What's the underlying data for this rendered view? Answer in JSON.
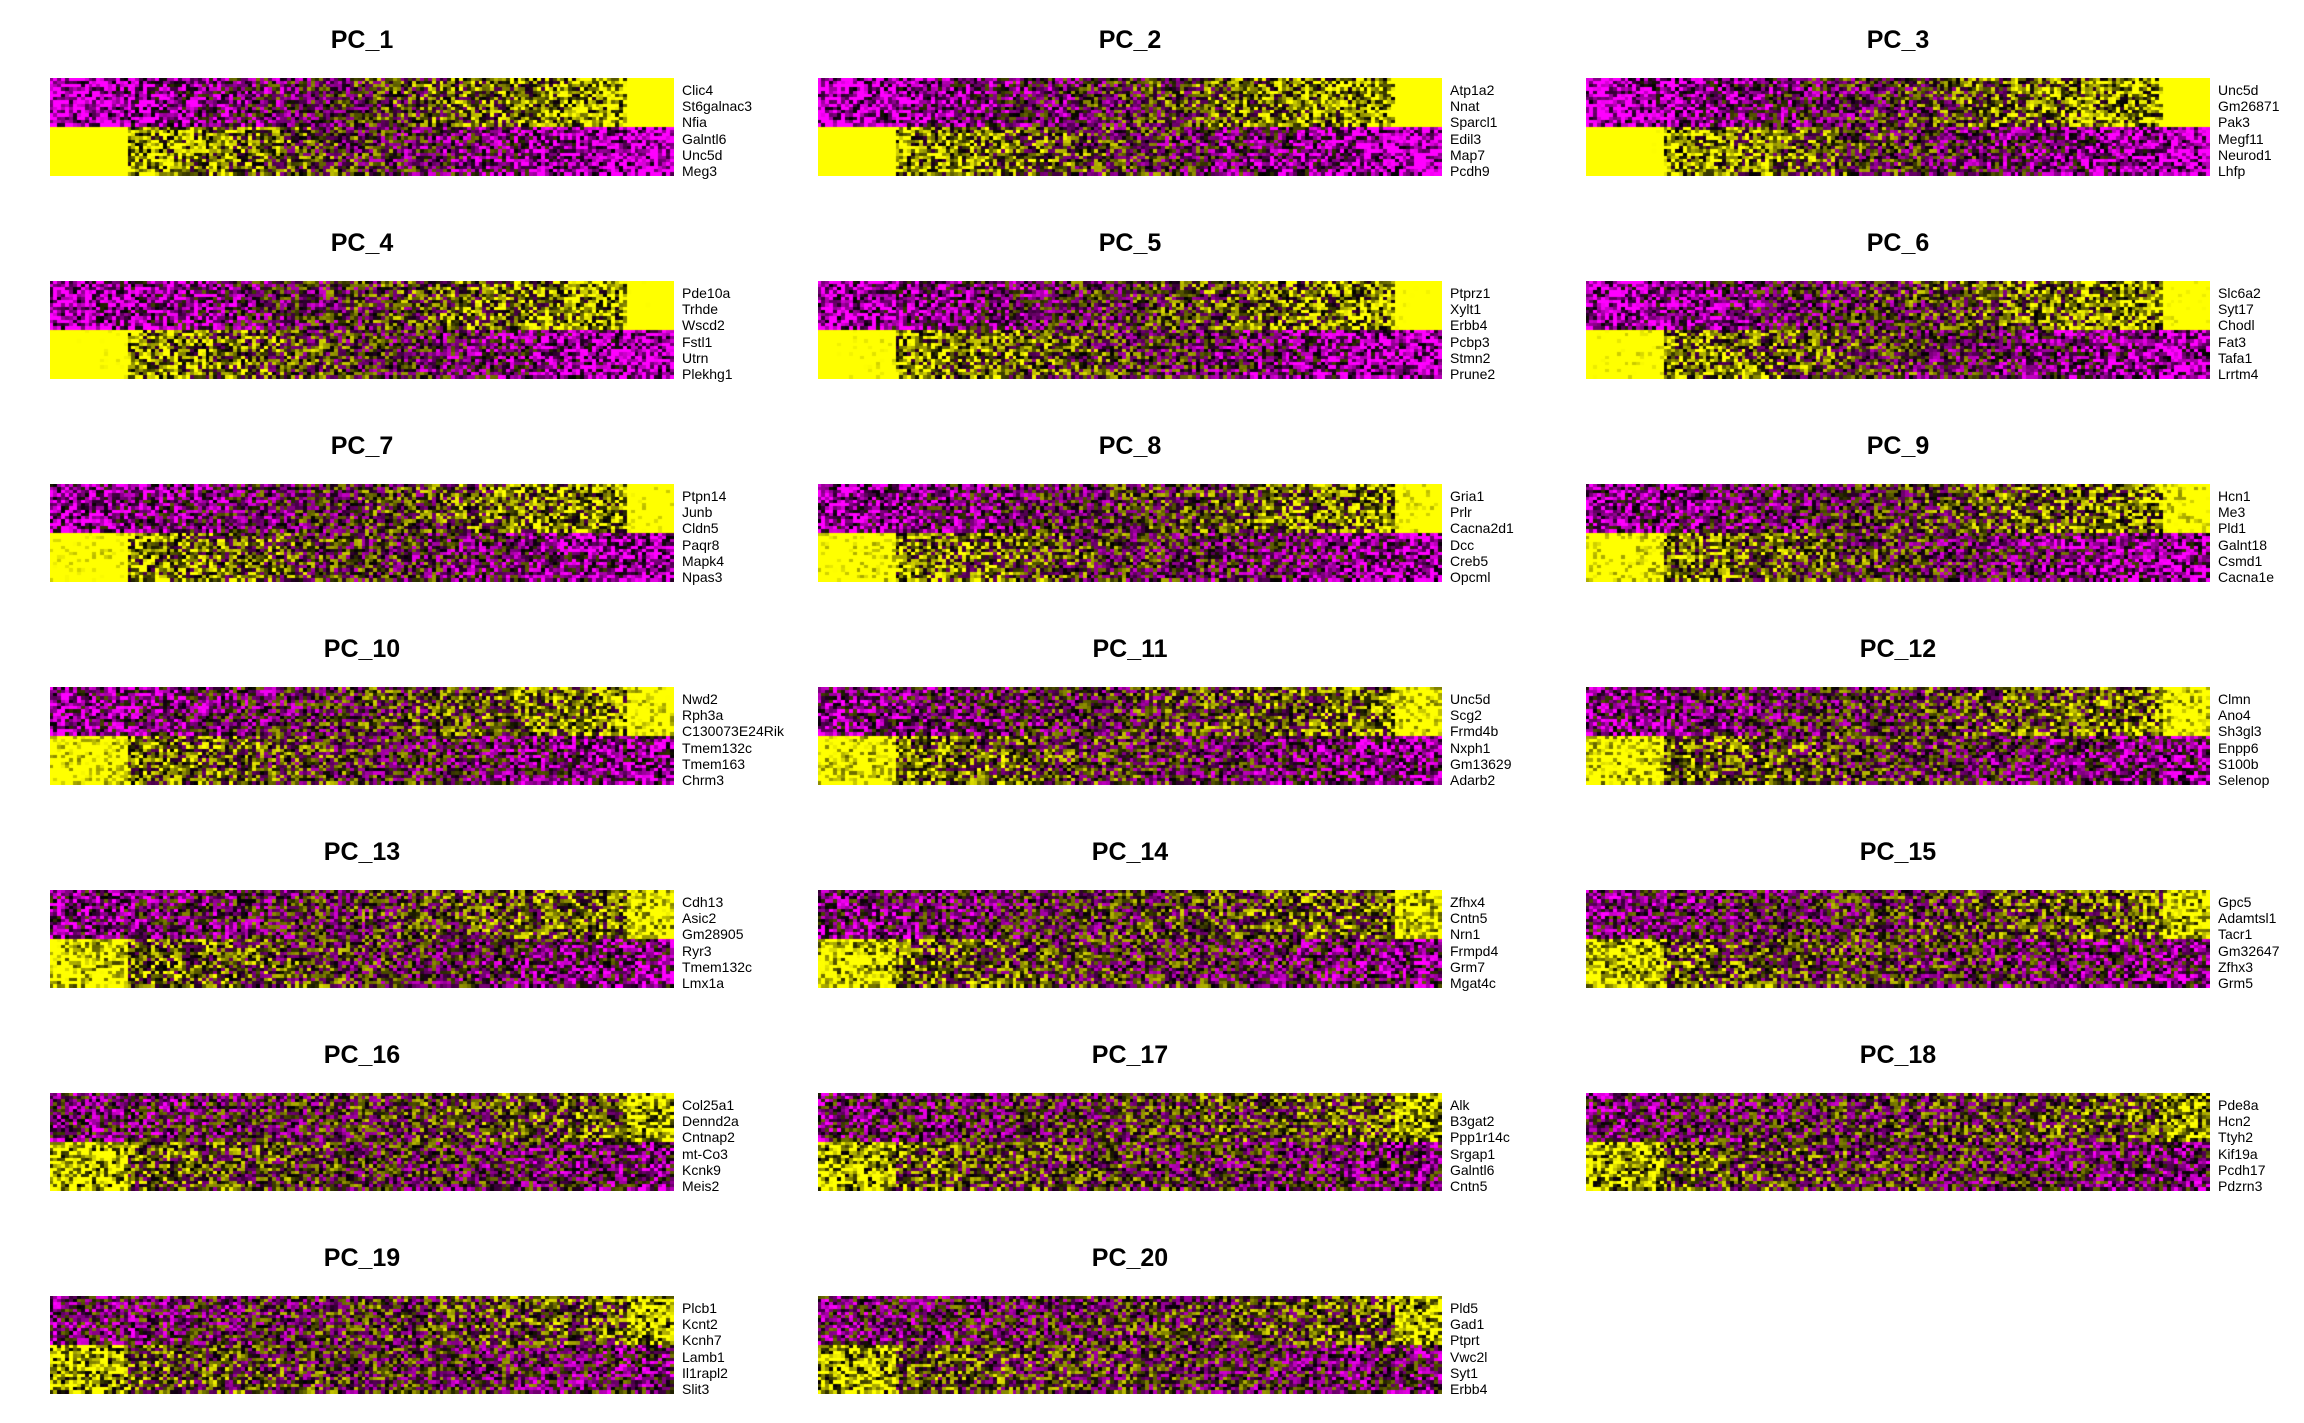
{
  "chart_data": {
    "type": "heatmap",
    "description_scale": "expression z-score colour scale: magenta (low) → black (mid) → yellow (high)",
    "colors": {
      "low": "#ff00ff",
      "mid": "#000000",
      "high": "#ffff00"
    },
    "panels": [
      {
        "title": "PC_1",
        "genes": [
          "Clic4",
          "St6galnac3",
          "Nfia",
          "Galntl6",
          "Unc5d",
          "Meg3"
        ]
      },
      {
        "title": "PC_2",
        "genes": [
          "Atp1a2",
          "Nnat",
          "Sparcl1",
          "Edil3",
          "Map7",
          "Pcdh9"
        ]
      },
      {
        "title": "PC_3",
        "genes": [
          "Unc5d",
          "Gm26871",
          "Pak3",
          "Megf11",
          "Neurod1",
          "Lhfp"
        ]
      },
      {
        "title": "PC_4",
        "genes": [
          "Pde10a",
          "Trhde",
          "Wscd2",
          "Fstl1",
          "Utrn",
          "Plekhg1"
        ]
      },
      {
        "title": "PC_5",
        "genes": [
          "Ptprz1",
          "Xylt1",
          "Erbb4",
          "Pcbp3",
          "Stmn2",
          "Prune2"
        ]
      },
      {
        "title": "PC_6",
        "genes": [
          "Slc6a2",
          "Syt17",
          "Chodl",
          "Fat3",
          "Tafa1",
          "Lrrtm4"
        ]
      },
      {
        "title": "PC_7",
        "genes": [
          "Ptpn14",
          "Junb",
          "Cldn5",
          "Paqr8",
          "Mapk4",
          "Npas3"
        ]
      },
      {
        "title": "PC_8",
        "genes": [
          "Gria1",
          "Prlr",
          "Cacna2d1",
          "Dcc",
          "Creb5",
          "Opcml"
        ]
      },
      {
        "title": "PC_9",
        "genes": [
          "Hcn1",
          "Me3",
          "Pld1",
          "Galnt18",
          "Csmd1",
          "Cacna1e"
        ]
      },
      {
        "title": "PC_10",
        "genes": [
          "Nwd2",
          "Rph3a",
          "C130073E24Rik",
          "Tmem132c",
          "Tmem163",
          "Chrm3"
        ]
      },
      {
        "title": "PC_11",
        "genes": [
          "Unc5d",
          "Scg2",
          "Frmd4b",
          "Nxph1",
          "Gm13629",
          "Adarb2"
        ]
      },
      {
        "title": "PC_12",
        "genes": [
          "Clmn",
          "Ano4",
          "Sh3gl3",
          "Enpp6",
          "S100b",
          "Selenop"
        ]
      },
      {
        "title": "PC_13",
        "genes": [
          "Cdh13",
          "Asic2",
          "Gm28905",
          "Ryr3",
          "Tmem132c",
          "Lmx1a"
        ]
      },
      {
        "title": "PC_14",
        "genes": [
          "Zfhx4",
          "Cntn5",
          "Nrn1",
          "Frmpd4",
          "Grm7",
          "Mgat4c"
        ]
      },
      {
        "title": "PC_15",
        "genes": [
          "Gpc5",
          "Adamtsl1",
          "Tacr1",
          "Gm32647",
          "Zfhx3",
          "Grm5"
        ]
      },
      {
        "title": "PC_16",
        "genes": [
          "Col25a1",
          "Dennd2a",
          "Cntnap2",
          "mt-Co3",
          "Kcnk9",
          "Meis2"
        ]
      },
      {
        "title": "PC_17",
        "genes": [
          "Alk",
          "B3gat2",
          "Ppp1r14c",
          "Srgap1",
          "Galntl6",
          "Cntn5"
        ]
      },
      {
        "title": "PC_18",
        "genes": [
          "Pde8a",
          "Hcn2",
          "Ttyh2",
          "Kif19a",
          "Pcdh17",
          "Pdzrn3"
        ]
      },
      {
        "title": "PC_19",
        "genes": [
          "Plcb1",
          "Kcnt2",
          "Kcnh7",
          "Lamb1",
          "Il1rapl2",
          "Slit3"
        ]
      },
      {
        "title": "PC_20",
        "genes": [
          "Pld5",
          "Gad1",
          "Ptprt",
          "Vwc2l",
          "Syt1",
          "Erbb4"
        ]
      }
    ]
  }
}
